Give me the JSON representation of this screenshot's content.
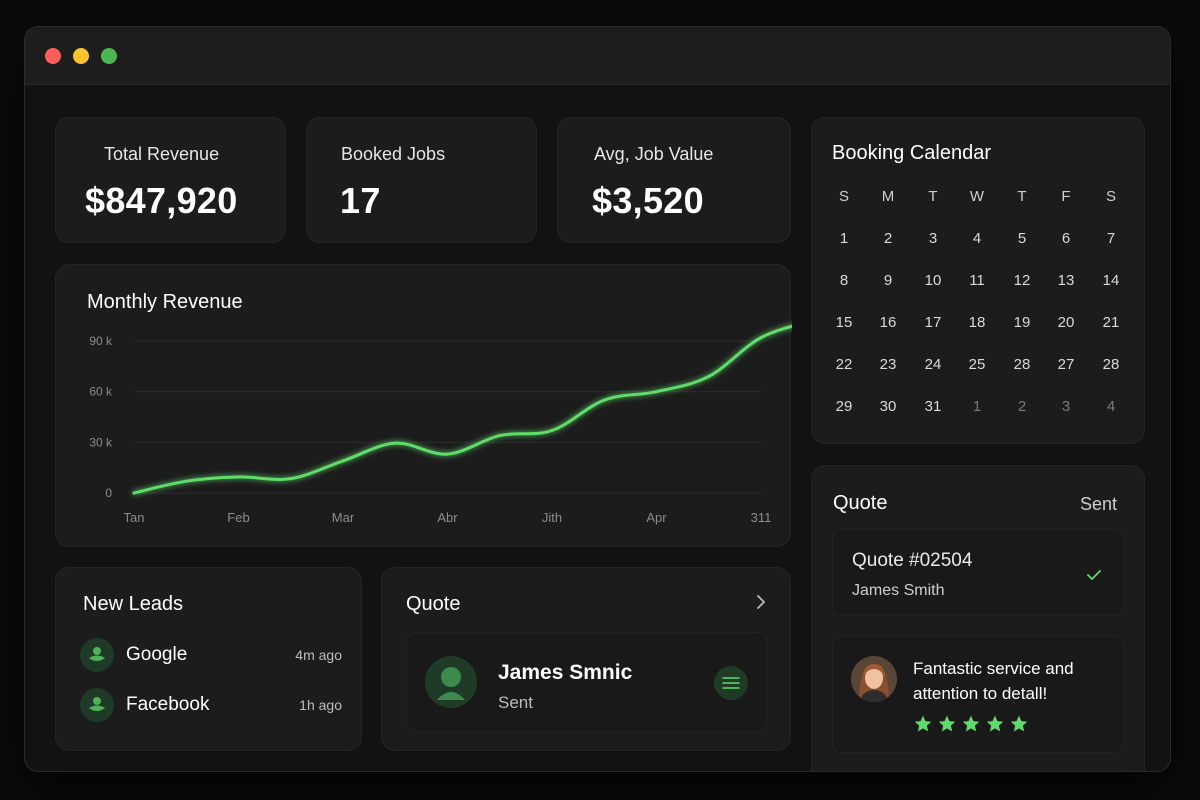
{
  "stats": [
    {
      "label": "Total Revenue",
      "value": "$847,920"
    },
    {
      "label": "Booked Jobs",
      "value": "17"
    },
    {
      "label": "Avg, Job Value",
      "value": "$3,520"
    }
  ],
  "chart": {
    "title": "Monthly Revenue"
  },
  "chart_data": {
    "type": "line",
    "title": "Monthly Revenue",
    "categories": [
      "Tan",
      "Feb",
      "Mar",
      "Abr",
      "Jith",
      "Apr",
      "311"
    ],
    "y_ticks": [
      "90 k",
      "60 k",
      "30 k",
      "0"
    ],
    "ylim": [
      0,
      100000
    ],
    "x": [
      0,
      0.5,
      1,
      1.5,
      2,
      2.5,
      3,
      3.5,
      4,
      4.5,
      5,
      5.5,
      6,
      6.5
    ],
    "values": [
      0,
      7000,
      9500,
      8500,
      19000,
      29500,
      23000,
      34000,
      37000,
      55000,
      60000,
      69000,
      92000,
      102000
    ],
    "color": "#5fdc6a",
    "grid": true,
    "legend": "none"
  },
  "calendar": {
    "title": "Booking Calendar",
    "weekdays": [
      "S",
      "M",
      "T",
      "W",
      "T",
      "F",
      "S"
    ],
    "weeks": [
      [
        "1",
        "2",
        "3",
        "4",
        "5",
        "6",
        "7"
      ],
      [
        "8",
        "9",
        "10",
        "11",
        "12",
        "13",
        "14"
      ],
      [
        "15",
        "16",
        "17",
        "18",
        "19",
        "20",
        "21"
      ],
      [
        "22",
        "23",
        "24",
        "25",
        "28",
        "27",
        "28"
      ],
      [
        "29",
        "30",
        "31",
        "1",
        "2",
        "3",
        "4"
      ]
    ]
  },
  "leads": {
    "title": "New Leads",
    "items": [
      {
        "name": "Google",
        "time": "4m ago",
        "icon": "lead-source-icon"
      },
      {
        "name": "Facebook",
        "time": "1h ago",
        "icon": "lead-source-icon"
      }
    ]
  },
  "quote_mid": {
    "title": "Quote",
    "name": "James Smnic",
    "status": "Sent"
  },
  "quote_side": {
    "title": "Quote",
    "status": "Sent",
    "number": "Quote #02504",
    "client": "James Smith"
  },
  "review": {
    "text_line1": "Fantastic service and",
    "text_line2": "attention to detall!",
    "rating": 5
  },
  "colors": {
    "accent": "#5fdc6a",
    "background": "#121212",
    "card": "#1c1c1c"
  }
}
